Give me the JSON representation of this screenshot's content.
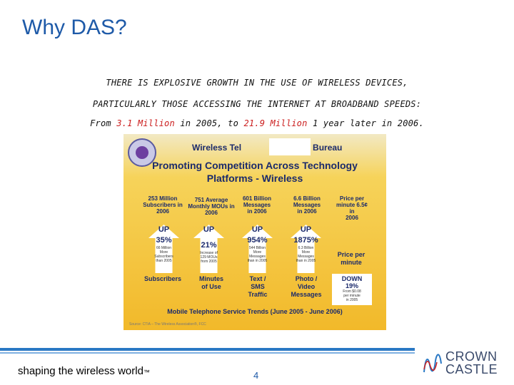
{
  "title": "Why DAS?",
  "intro": {
    "line1": "THERE IS EXPLOSIVE GROWTH IN THE USE OF WIRELESS DEVICES,",
    "line2": "PARTICULARLY THOSE ACCESSING THE INTERNET AT BROADBAND SPEEDS:",
    "line3_prefix": "From ",
    "line3_value1": "3.1 Million",
    "line3_mid": " in 2005, to ",
    "line3_value2": "21.9 Million",
    "line3_suffix": " 1 year later in 2006."
  },
  "slide": {
    "bureau": "Wireless Tel",
    "bureau_end": "Bureau",
    "headline1": "Promoting Competition Across Technology",
    "headline2": "Platforms - Wireless",
    "columns": [
      {
        "stat": "253 Million\nSubscribers in\n2006",
        "up": "UP",
        "pct": "35%",
        "detail": "66 Million\nMore\nSubscribers\nthan 2005",
        "category": "Subscribers"
      },
      {
        "stat": "751 Average\nMonthly MOUs in\n2006",
        "up": "UP",
        "pct": "21%",
        "detail": "Increase of\n129 MOUs\nfrom 2005",
        "category": "Minutes\nof Use"
      },
      {
        "stat": "601 Billion\nMessages\nin 2006",
        "up": "UP",
        "pct": "954%",
        "detail": "544 Billion\nMore\nMessages\nthan in 2005",
        "category": "Text /\nSMS\nTraffic"
      },
      {
        "stat": "6.6 Billion\nMessages\nin 2006",
        "up": "UP",
        "pct": "1875%",
        "detail": "6.3 Billion\nMore\nMessages\nthan in 2005",
        "category": "Photo /\nVideo\nMessages"
      },
      {
        "stat": "Price per\nminute 6.5¢ in\n2006",
        "up": "",
        "pct": "",
        "detail": "",
        "category": "Price per\nminute"
      }
    ],
    "down_label": "DOWN",
    "down_pct": "19%",
    "down_detail": "From $0.08\nper minute\nin 2005",
    "caption": "Mobile Telephone Service Trends (June 2005 - June 2006)",
    "source": "Source: CTIA – The Wireless Association®, FCC"
  },
  "footer": {
    "tagline": "shaping the wireless world",
    "tagline_mark": "™",
    "page_number": "4",
    "logo_line1": "CROWN",
    "logo_line2": "CASTLE"
  },
  "colors": {
    "title": "#1e5aa8",
    "highlight": "#cc2020",
    "rule": "#2a78c4"
  }
}
